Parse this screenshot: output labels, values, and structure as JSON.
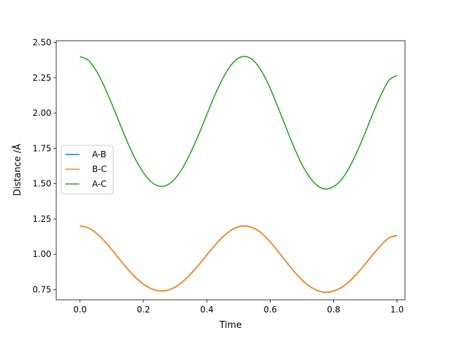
{
  "chart_data": {
    "type": "line",
    "title": "",
    "xlabel": "Time",
    "ylabel": "Distance /Å",
    "xlim": [
      -0.075,
      1.025
    ],
    "ylim": [
      0.6775,
      2.5125
    ],
    "xticks": [
      0.0,
      0.2,
      0.4,
      0.6,
      0.8,
      1.0
    ],
    "xtick_labels": [
      "0.0",
      "0.2",
      "0.4",
      "0.6",
      "0.8",
      "1.0"
    ],
    "yticks": [
      0.75,
      1.0,
      1.25,
      1.5,
      1.75,
      2.0,
      2.25,
      2.5
    ],
    "ytick_labels": [
      "0.75",
      "1.00",
      "1.25",
      "1.50",
      "1.75",
      "2.00",
      "2.25",
      "2.50"
    ],
    "grid": false,
    "legend_position": "center-left",
    "x": [
      0.0,
      0.025,
      0.05,
      0.075,
      0.1,
      0.125,
      0.15,
      0.175,
      0.2,
      0.225,
      0.25,
      0.275,
      0.3,
      0.325,
      0.35,
      0.375,
      0.4,
      0.425,
      0.45,
      0.475,
      0.5,
      0.525,
      0.55,
      0.575,
      0.6,
      0.625,
      0.65,
      0.675,
      0.7,
      0.725,
      0.75,
      0.775,
      0.8,
      0.825,
      0.85,
      0.875,
      0.9,
      0.925,
      0.95,
      0.975,
      1.0
    ],
    "series": [
      {
        "name": "A-B",
        "color": "#1f77b4",
        "values": [
          1.2,
          1.188,
          1.152,
          1.098,
          1.033,
          0.964,
          0.896,
          0.836,
          0.789,
          0.756,
          0.741,
          0.745,
          0.768,
          0.808,
          0.863,
          0.926,
          0.995,
          1.063,
          1.122,
          1.168,
          1.195,
          1.2,
          1.183,
          1.144,
          1.087,
          1.019,
          0.948,
          0.879,
          0.818,
          0.772,
          0.742,
          0.731,
          0.74,
          0.765,
          0.809,
          0.866,
          0.932,
          1.002,
          1.066,
          1.117,
          1.133
        ]
      },
      {
        "name": "B-C",
        "color": "#ff7f0e",
        "values": [
          1.2,
          1.188,
          1.152,
          1.098,
          1.033,
          0.964,
          0.896,
          0.836,
          0.789,
          0.756,
          0.741,
          0.745,
          0.768,
          0.808,
          0.863,
          0.926,
          0.995,
          1.063,
          1.122,
          1.168,
          1.195,
          1.2,
          1.183,
          1.144,
          1.087,
          1.019,
          0.948,
          0.879,
          0.818,
          0.772,
          0.742,
          0.731,
          0.74,
          0.765,
          0.809,
          0.866,
          0.932,
          1.002,
          1.066,
          1.117,
          1.133
        ]
      },
      {
        "name": "A-C",
        "color": "#2ca02c",
        "values": [
          2.4,
          2.376,
          2.304,
          2.196,
          2.066,
          1.928,
          1.792,
          1.672,
          1.578,
          1.512,
          1.482,
          1.49,
          1.536,
          1.616,
          1.726,
          1.852,
          1.99,
          2.126,
          2.244,
          2.336,
          2.39,
          2.4,
          2.366,
          2.288,
          2.174,
          2.038,
          1.896,
          1.758,
          1.636,
          1.544,
          1.484,
          1.462,
          1.48,
          1.53,
          1.618,
          1.732,
          1.864,
          2.004,
          2.132,
          2.234,
          2.266
        ]
      }
    ]
  }
}
